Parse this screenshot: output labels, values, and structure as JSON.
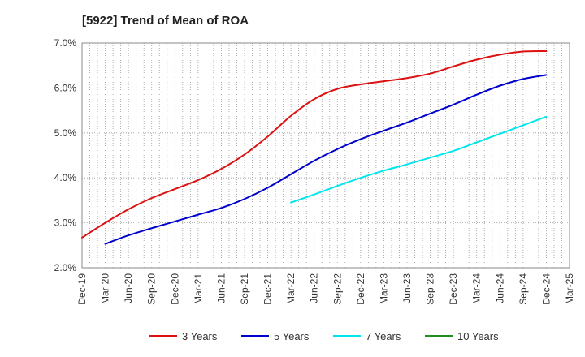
{
  "chart_data": {
    "type": "line",
    "title": "[5922]  Trend of Mean of ROA",
    "xlabel": "",
    "ylabel": "",
    "ylim": [
      2.0,
      7.0
    ],
    "y_ticks": [
      "2.0%",
      "3.0%",
      "4.0%",
      "5.0%",
      "6.0%",
      "7.0%"
    ],
    "x_ticks": [
      "Dec-19",
      "Mar-20",
      "Jun-20",
      "Sep-20",
      "Dec-20",
      "Mar-21",
      "Jun-21",
      "Sep-21",
      "Dec-21",
      "Mar-22",
      "Jun-22",
      "Sep-22",
      "Dec-22",
      "Mar-23",
      "Jun-23",
      "Sep-23",
      "Dec-23",
      "Mar-24",
      "Jun-24",
      "Sep-24",
      "Dec-24",
      "Mar-25"
    ],
    "grid": true,
    "legend_position": "bottom",
    "series": [
      {
        "name": "3 Years",
        "color": "#dd1111",
        "points": [
          [
            "Dec-19",
            2.67
          ],
          [
            "Mar-20",
            3.0
          ],
          [
            "Jun-20",
            3.3
          ],
          [
            "Sep-20",
            3.55
          ],
          [
            "Dec-20",
            3.75
          ],
          [
            "Mar-21",
            3.95
          ],
          [
            "Jun-21",
            4.2
          ],
          [
            "Sep-21",
            4.52
          ],
          [
            "Dec-21",
            4.92
          ],
          [
            "Mar-22",
            5.38
          ],
          [
            "Jun-22",
            5.75
          ],
          [
            "Sep-22",
            5.98
          ],
          [
            "Dec-22",
            6.08
          ],
          [
            "Mar-23",
            6.15
          ],
          [
            "Jun-23",
            6.22
          ],
          [
            "Sep-23",
            6.32
          ],
          [
            "Dec-23",
            6.48
          ],
          [
            "Mar-24",
            6.63
          ],
          [
            "Jun-24",
            6.74
          ],
          [
            "Sep-24",
            6.81
          ],
          [
            "Dec-24",
            6.82
          ]
        ]
      },
      {
        "name": "5 Years",
        "color": "#0000cc",
        "points": [
          [
            "Mar-20",
            2.53
          ],
          [
            "Jun-20",
            2.72
          ],
          [
            "Sep-20",
            2.88
          ],
          [
            "Dec-20",
            3.03
          ],
          [
            "Mar-21",
            3.18
          ],
          [
            "Jun-21",
            3.33
          ],
          [
            "Sep-21",
            3.53
          ],
          [
            "Dec-21",
            3.78
          ],
          [
            "Mar-22",
            4.08
          ],
          [
            "Jun-22",
            4.38
          ],
          [
            "Sep-22",
            4.64
          ],
          [
            "Dec-22",
            4.86
          ],
          [
            "Mar-23",
            5.05
          ],
          [
            "Jun-23",
            5.23
          ],
          [
            "Sep-23",
            5.43
          ],
          [
            "Dec-23",
            5.63
          ],
          [
            "Mar-24",
            5.85
          ],
          [
            "Jun-24",
            6.05
          ],
          [
            "Sep-24",
            6.2
          ],
          [
            "Dec-24",
            6.29
          ]
        ]
      },
      {
        "name": "7 Years",
        "color": "#00e5ee",
        "points": [
          [
            "Mar-22",
            3.45
          ],
          [
            "Jun-22",
            3.63
          ],
          [
            "Sep-22",
            3.82
          ],
          [
            "Dec-22",
            4.0
          ],
          [
            "Mar-23",
            4.16
          ],
          [
            "Jun-23",
            4.3
          ],
          [
            "Sep-23",
            4.45
          ],
          [
            "Dec-23",
            4.6
          ],
          [
            "Mar-24",
            4.79
          ],
          [
            "Jun-24",
            4.98
          ],
          [
            "Sep-24",
            5.17
          ],
          [
            "Dec-24",
            5.36
          ]
        ]
      },
      {
        "name": "10 Years",
        "color": "#228b22",
        "points": []
      }
    ]
  }
}
